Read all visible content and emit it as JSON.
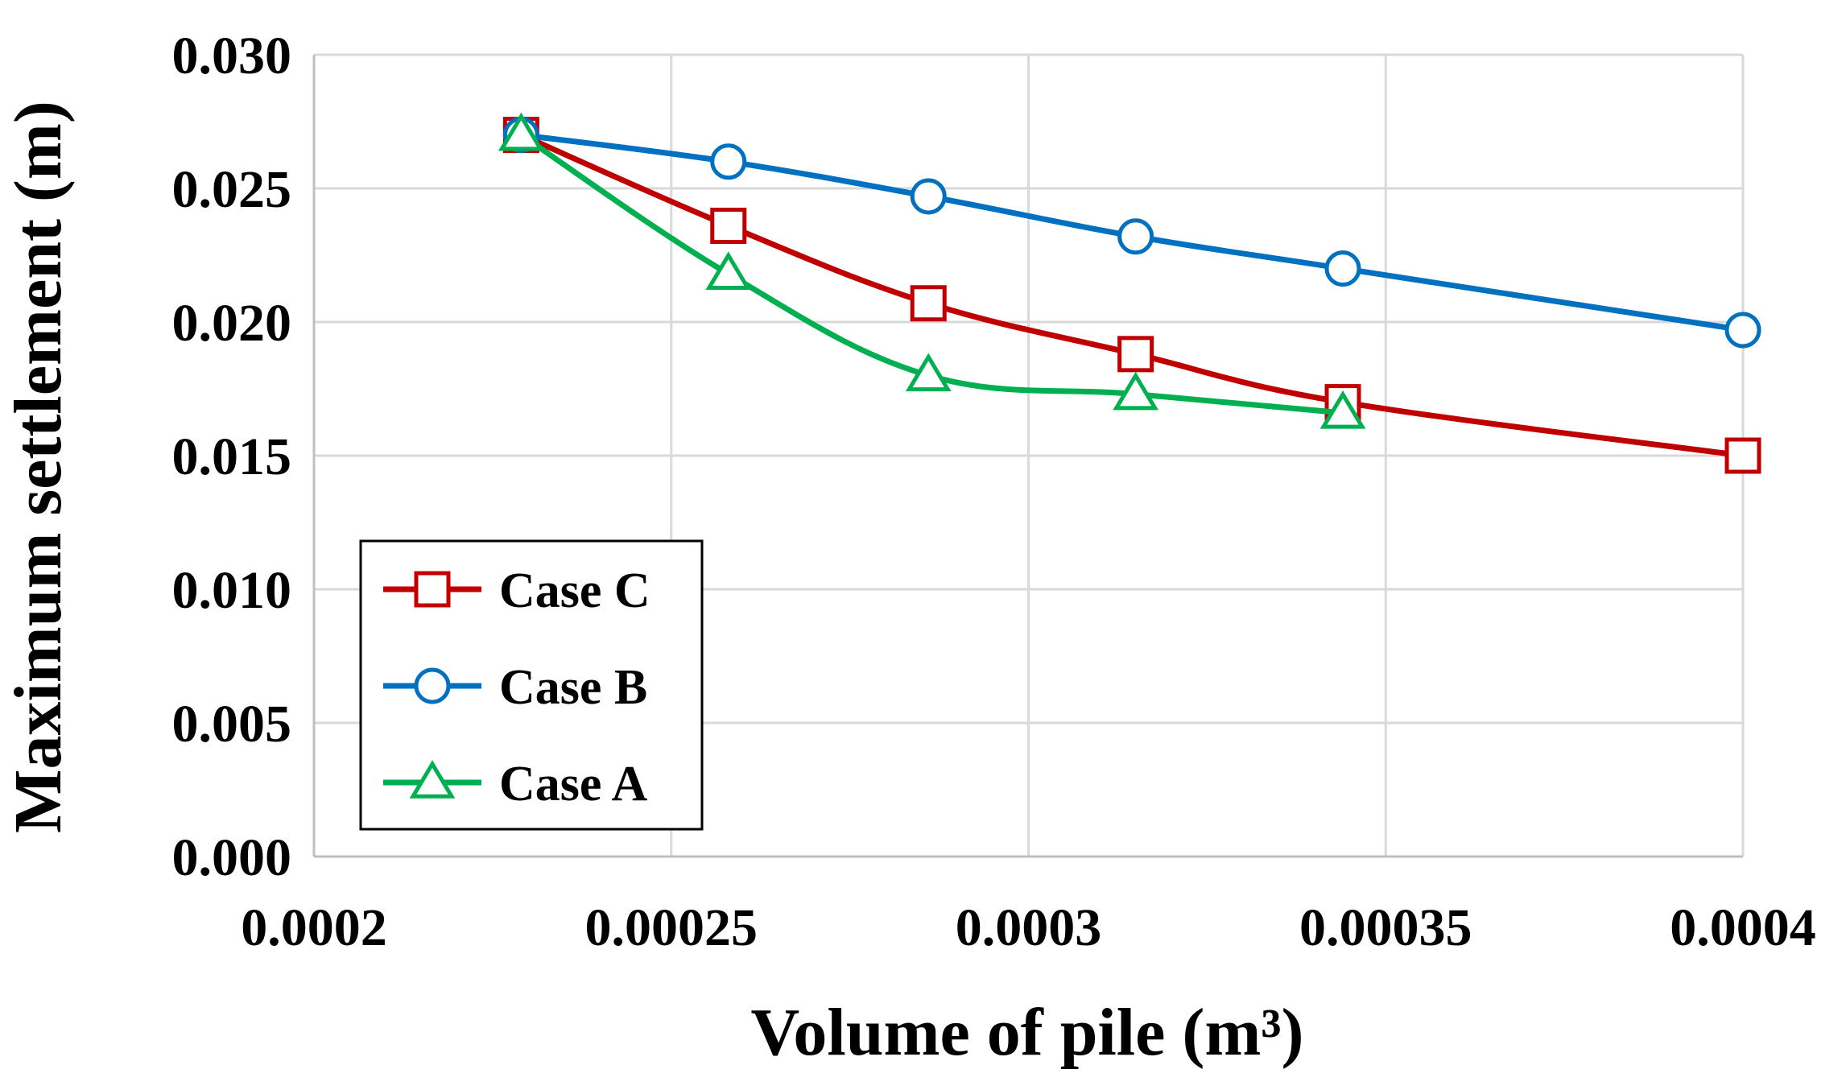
{
  "chart_data": {
    "type": "line",
    "title": "",
    "xlabel": "Volume of pile (m³)",
    "ylabel": "Maximum settlement (m)",
    "xlim": [
      0.0002,
      0.0004
    ],
    "ylim": [
      0.0,
      0.03
    ],
    "x_ticks": [
      "0.0002",
      "0.00025",
      "0.0003",
      "0.00035",
      "0.0004"
    ],
    "y_ticks": [
      "0.000",
      "0.005",
      "0.010",
      "0.015",
      "0.020",
      "0.025",
      "0.030"
    ],
    "grid": true,
    "legend_position": "bottom-left",
    "series": [
      {
        "name": "Case C",
        "color": "#c00000",
        "marker": "square",
        "x": [
          0.000229,
          0.000258,
          0.000286,
          0.000315,
          0.000344,
          0.0004
        ],
        "y": [
          0.027,
          0.0236,
          0.0207,
          0.0188,
          0.017,
          0.015
        ]
      },
      {
        "name": "Case B",
        "color": "#0070c0",
        "marker": "circle",
        "x": [
          0.000229,
          0.000258,
          0.000286,
          0.000315,
          0.000344,
          0.0004
        ],
        "y": [
          0.027,
          0.026,
          0.0247,
          0.0232,
          0.022,
          0.0197
        ]
      },
      {
        "name": "Case A",
        "color": "#00b050",
        "marker": "triangle",
        "x": [
          0.000229,
          0.000258,
          0.000286,
          0.000315,
          0.000344
        ],
        "y": [
          0.027,
          0.0218,
          0.018,
          0.0173,
          0.0166
        ]
      }
    ]
  }
}
